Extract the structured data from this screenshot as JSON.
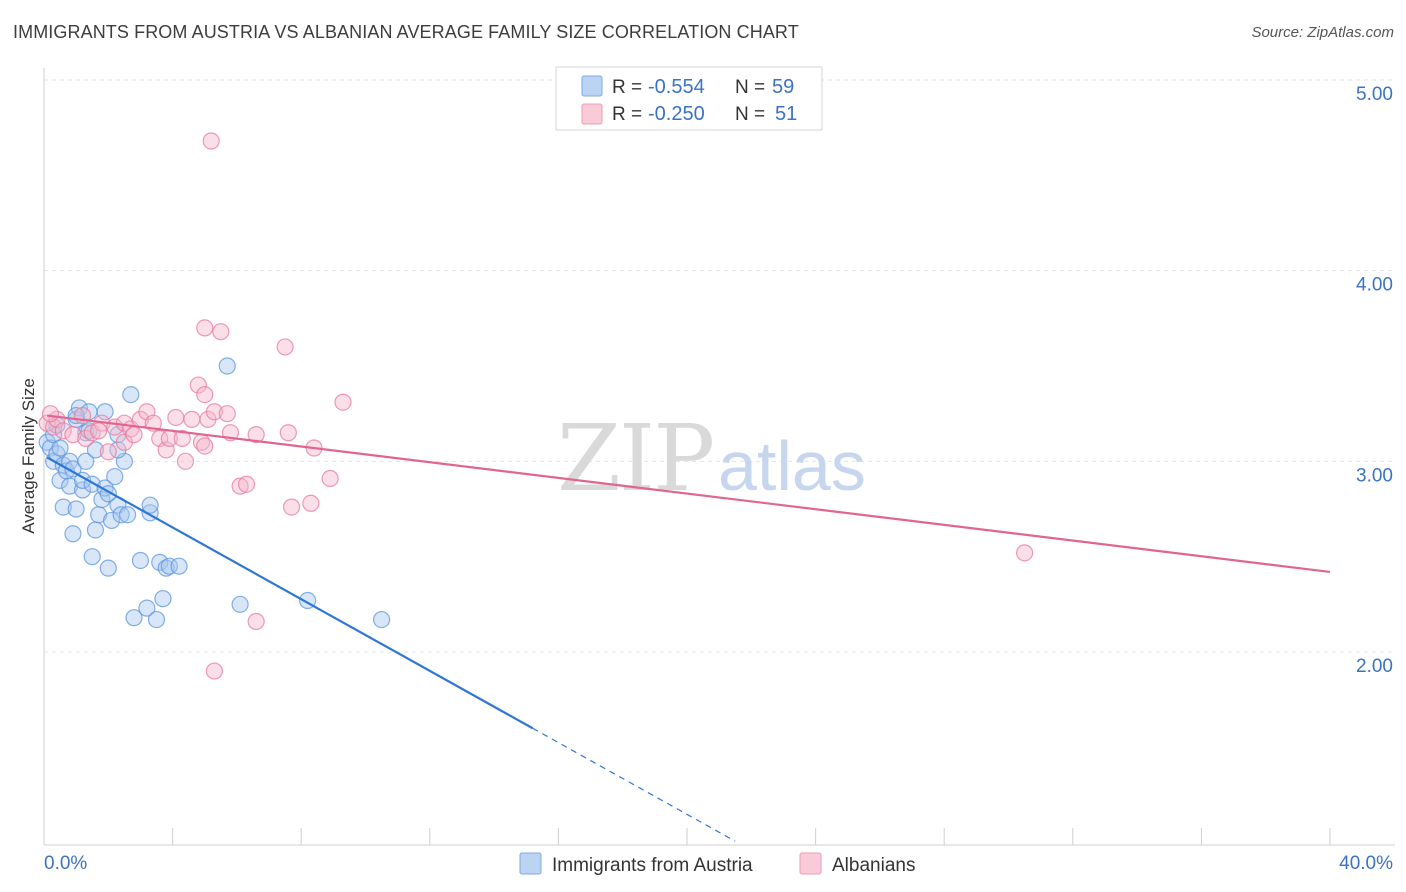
{
  "header": {
    "title": "IMMIGRANTS FROM AUSTRIA VS ALBANIAN AVERAGE FAMILY SIZE CORRELATION CHART",
    "source": "Source: ZipAtlas.com"
  },
  "watermark": {
    "zip": "ZIP",
    "atlas": "atlas"
  },
  "legend_top": [
    {
      "r_label": "R = ",
      "r_value": "-0.554",
      "n_label": "N = ",
      "n_value": "59",
      "color": "#9fc3ee"
    },
    {
      "r_label": "R = ",
      "r_value": "-0.250",
      "n_label": "N = ",
      "n_value": "51",
      "color": "#f5b3c8"
    }
  ],
  "chart_data": {
    "type": "scatter",
    "title": "IMMIGRANTS FROM AUSTRIA VS ALBANIAN AVERAGE FAMILY SIZE CORRELATION CHART",
    "xlabel": "",
    "ylabel": "Average Family Size",
    "xlim": [
      0,
      40
    ],
    "ylim": [
      1.0,
      5.15
    ],
    "x_tick_labels": [
      "0.0%",
      "40.0%"
    ],
    "y_ticks": [
      2.0,
      3.0,
      4.0,
      5.0
    ],
    "y_tick_labels": [
      "2.00",
      "3.00",
      "4.00",
      "5.00"
    ],
    "grid": true,
    "legend_position": "bottom-center",
    "series": [
      {
        "name": "Immigrants from Austria",
        "color": "#5b95dd",
        "fill": "#a9c8ef",
        "trend": {
          "x0": 0.1,
          "y0": 3.02,
          "x1": 15.2,
          "y1": 1.6,
          "dash_x_end": 21.5
        },
        "points": [
          [
            0.1,
            3.1
          ],
          [
            0.2,
            3.07
          ],
          [
            0.3,
            3.0
          ],
          [
            0.3,
            3.14
          ],
          [
            0.4,
            3.04
          ],
          [
            0.5,
            3.07
          ],
          [
            0.5,
            2.9
          ],
          [
            0.6,
            2.76
          ],
          [
            0.6,
            2.98
          ],
          [
            0.7,
            2.95
          ],
          [
            0.8,
            3.0
          ],
          [
            0.8,
            2.87
          ],
          [
            0.9,
            2.96
          ],
          [
            0.9,
            2.62
          ],
          [
            1.0,
            3.22
          ],
          [
            1.0,
            2.75
          ],
          [
            1.1,
            3.28
          ],
          [
            1.2,
            2.85
          ],
          [
            1.2,
            2.9
          ],
          [
            1.3,
            3.15
          ],
          [
            1.3,
            3.0
          ],
          [
            1.4,
            3.26
          ],
          [
            1.5,
            2.5
          ],
          [
            1.5,
            2.88
          ],
          [
            1.6,
            2.64
          ],
          [
            1.6,
            3.06
          ],
          [
            1.7,
            2.72
          ],
          [
            1.8,
            2.8
          ],
          [
            1.9,
            3.26
          ],
          [
            1.9,
            2.86
          ],
          [
            2.0,
            2.44
          ],
          [
            2.0,
            2.83
          ],
          [
            2.1,
            2.69
          ],
          [
            2.2,
            2.92
          ],
          [
            2.3,
            2.77
          ],
          [
            2.4,
            2.72
          ],
          [
            2.5,
            3.0
          ],
          [
            2.3,
            3.06
          ],
          [
            2.3,
            3.14
          ],
          [
            2.8,
            2.18
          ],
          [
            2.6,
            2.72
          ],
          [
            3.0,
            2.48
          ],
          [
            2.7,
            3.35
          ],
          [
            3.2,
            2.23
          ],
          [
            3.3,
            2.73
          ],
          [
            3.5,
            2.17
          ],
          [
            3.6,
            2.47
          ],
          [
            3.7,
            2.28
          ],
          [
            3.8,
            2.44
          ],
          [
            3.9,
            2.45
          ],
          [
            4.2,
            2.45
          ],
          [
            5.7,
            3.5
          ],
          [
            6.1,
            2.25
          ],
          [
            8.2,
            2.27
          ],
          [
            10.5,
            2.17
          ],
          [
            1.0,
            3.24
          ],
          [
            0.4,
            3.19
          ],
          [
            1.4,
            3.16
          ],
          [
            3.3,
            2.77
          ]
        ]
      },
      {
        "name": "Albanians",
        "color": "#e8799c",
        "fill": "#f5b9cc",
        "trend": {
          "x0": 0.1,
          "y0": 3.24,
          "x1": 40.0,
          "y1": 2.42
        },
        "points": [
          [
            0.1,
            3.2
          ],
          [
            0.3,
            3.18
          ],
          [
            0.4,
            3.22
          ],
          [
            0.6,
            3.16
          ],
          [
            0.9,
            3.14
          ],
          [
            1.2,
            3.24
          ],
          [
            1.3,
            3.12
          ],
          [
            1.5,
            3.15
          ],
          [
            1.8,
            3.2
          ],
          [
            2.0,
            3.05
          ],
          [
            2.2,
            3.18
          ],
          [
            2.5,
            3.1
          ],
          [
            2.5,
            3.2
          ],
          [
            2.7,
            3.17
          ],
          [
            2.8,
            3.14
          ],
          [
            3.0,
            3.22
          ],
          [
            3.2,
            3.26
          ],
          [
            3.4,
            3.2
          ],
          [
            3.6,
            3.12
          ],
          [
            3.8,
            3.06
          ],
          [
            3.9,
            3.12
          ],
          [
            4.1,
            3.23
          ],
          [
            4.3,
            3.12
          ],
          [
            4.4,
            3.0
          ],
          [
            4.6,
            3.22
          ],
          [
            4.8,
            3.4
          ],
          [
            4.9,
            3.1
          ],
          [
            5.0,
            3.08
          ],
          [
            5.1,
            3.22
          ],
          [
            5.3,
            3.26
          ],
          [
            5.0,
            3.7
          ],
          [
            5.0,
            3.35
          ],
          [
            5.2,
            4.68
          ],
          [
            5.5,
            3.68
          ],
          [
            5.7,
            3.25
          ],
          [
            5.8,
            3.15
          ],
          [
            6.1,
            2.87
          ],
          [
            6.3,
            2.88
          ],
          [
            6.6,
            3.14
          ],
          [
            7.5,
            3.6
          ],
          [
            7.6,
            3.15
          ],
          [
            7.7,
            2.76
          ],
          [
            8.3,
            2.78
          ],
          [
            8.4,
            3.07
          ],
          [
            8.9,
            2.91
          ],
          [
            9.3,
            3.31
          ],
          [
            6.6,
            2.16
          ],
          [
            5.3,
            1.9
          ],
          [
            30.5,
            2.52
          ],
          [
            1.7,
            3.16
          ],
          [
            0.2,
            3.25
          ]
        ]
      }
    ]
  }
}
